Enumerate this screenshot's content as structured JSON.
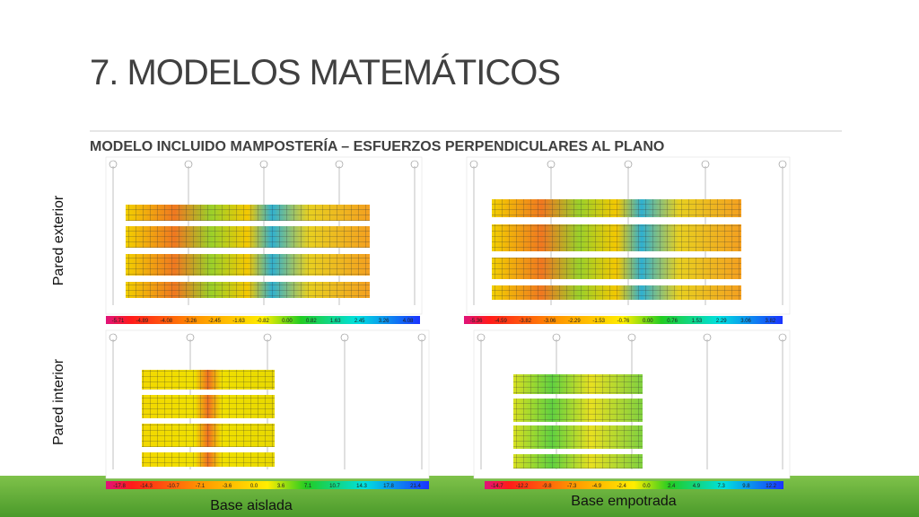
{
  "title": "7. MODELOS MATEMÁTICOS",
  "subtitle": "MODELO INCLUIDO MAMPOSTERÍA – ESFUERZOS PERPENDICULARES AL PLANO",
  "row_labels": [
    "Pared exterior",
    "Pared interior"
  ],
  "panels": [
    {
      "scale": [
        "-5.71",
        "-4.89",
        "-4.08",
        "-3.26",
        "-2.45",
        "-1.63",
        "-0.82",
        "0.00",
        "0.82",
        "1.63",
        "2.45",
        "3.26",
        "4.08"
      ]
    },
    {
      "scale": [
        "-5.36",
        "-4.59",
        "-3.82",
        "-3.06",
        "-2.29",
        "-1.53",
        "-0.76",
        "0.00",
        "0.76",
        "1.53",
        "2.29",
        "3.06",
        "3.82"
      ]
    },
    {
      "scale": [
        "-17.8",
        "-14.3",
        "-10.7",
        "-7.1",
        "-3.6",
        "0.0",
        "3.6",
        "7.1",
        "10.7",
        "14.3",
        "17.8",
        "21.4"
      ],
      "caption": "Base aislada"
    },
    {
      "scale": [
        "-14.7",
        "-12.2",
        "-9.8",
        "-7.3",
        "-4.9",
        "-2.4",
        "0.0",
        "2.4",
        "4.9",
        "7.3",
        "9.8",
        "12.2"
      ],
      "caption": "Base empotrada"
    }
  ]
}
